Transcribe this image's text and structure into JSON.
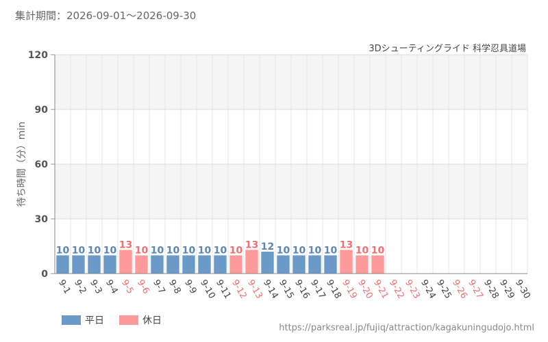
{
  "header": {
    "period": "集計期間：2026-09-01～2026-09-30",
    "subtitle": "3Dシューティングライド 科学忍具道場"
  },
  "footer": {
    "url": "https://parksreal.jp/fujiq/attraction/kagakuningudojo.html"
  },
  "colors": {
    "weekday": "#6c9ac8",
    "holiday": "#ff9a9a",
    "weekday_label": "#5b86b4",
    "holiday_label": "#f26f6f"
  },
  "legend": [
    {
      "label": "平日",
      "kind": "weekday"
    },
    {
      "label": "休日",
      "kind": "holiday"
    }
  ],
  "chart_data": {
    "type": "bar",
    "ylabel": "待ち時間（分）min",
    "ylim": [
      0,
      120
    ],
    "yticks": [
      0,
      30,
      60,
      90,
      120
    ],
    "grid": true,
    "legend_position": "bottom-left",
    "categories": [
      "9-1",
      "9-2",
      "9-3",
      "9-4",
      "9-5",
      "9-6",
      "9-7",
      "9-8",
      "9-9",
      "9-10",
      "9-11",
      "9-12",
      "9-13",
      "9-14",
      "9-15",
      "9-16",
      "9-17",
      "9-18",
      "9-19",
      "9-20",
      "9-21",
      "9-22",
      "9-23",
      "9-24",
      "9-25",
      "9-26",
      "9-27",
      "9-28",
      "9-29",
      "9-30"
    ],
    "values": [
      10,
      10,
      10,
      10,
      13,
      10,
      10,
      10,
      10,
      10,
      10,
      10,
      13,
      12,
      10,
      10,
      10,
      10,
      13,
      10,
      10,
      null,
      null,
      null,
      null,
      null,
      null,
      null,
      null,
      null
    ],
    "day_type": [
      "weekday",
      "weekday",
      "weekday",
      "weekday",
      "holiday",
      "holiday",
      "weekday",
      "weekday",
      "weekday",
      "weekday",
      "weekday",
      "holiday",
      "holiday",
      "weekday",
      "weekday",
      "weekday",
      "weekday",
      "weekday",
      "holiday",
      "holiday",
      "holiday",
      "holiday",
      "holiday",
      "weekday",
      "weekday",
      "holiday",
      "holiday",
      "weekday",
      "weekday",
      "weekday"
    ]
  }
}
